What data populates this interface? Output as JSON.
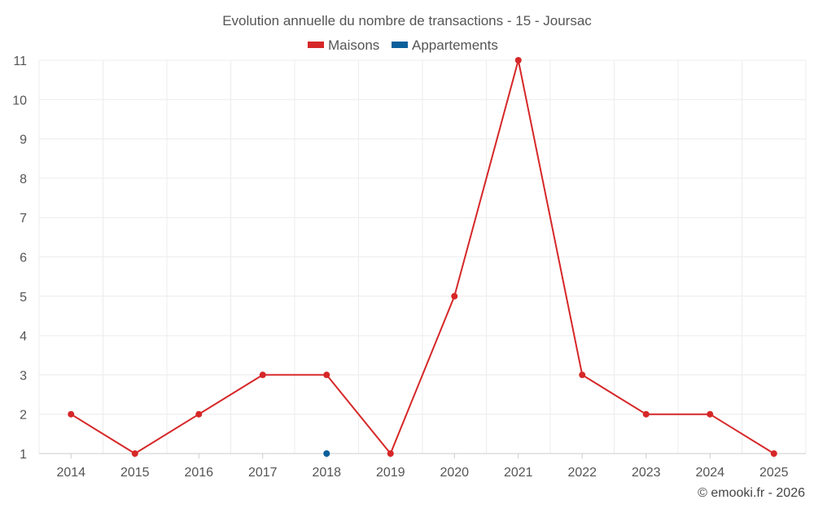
{
  "chart_data": {
    "type": "line",
    "title": "Evolution annuelle du nombre de transactions - 15 - Joursac",
    "categories": [
      "2014",
      "2015",
      "2016",
      "2017",
      "2018",
      "2019",
      "2020",
      "2021",
      "2022",
      "2023",
      "2024",
      "2025"
    ],
    "series": [
      {
        "name": "Maisons",
        "color": "#d62728",
        "values": [
          2,
          1,
          2,
          3,
          3,
          1,
          5,
          11,
          3,
          2,
          2,
          1
        ]
      },
      {
        "name": "Appartements",
        "color": "#0b5f9a",
        "values": [
          null,
          null,
          null,
          null,
          1,
          null,
          null,
          null,
          null,
          null,
          null,
          null
        ]
      }
    ],
    "yticks": [
      1,
      2,
      3,
      4,
      5,
      6,
      7,
      8,
      9,
      10,
      11
    ],
    "ylim": [
      1,
      11
    ],
    "grid": true,
    "legend_position": "top"
  },
  "footer": {
    "copyright": "© emooki.fr - 2026"
  }
}
